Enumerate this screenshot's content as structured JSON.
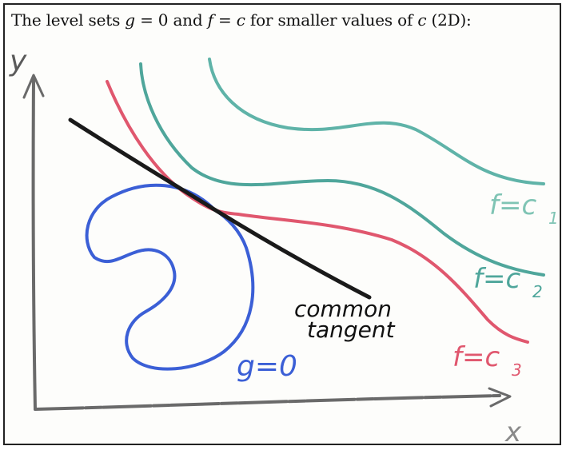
{
  "caption": {
    "pre": "The level sets ",
    "g": "g",
    "eq1": " = 0 and ",
    "f": "f",
    "eq2": " = ",
    "c": "c",
    "mid": " for smaller values of ",
    "c2": "c",
    "post": " (2D):"
  },
  "axes": {
    "y_label": "y",
    "x_label": "x"
  },
  "labels": {
    "f_c1": "f=c",
    "f_c1_sub": "1",
    "f_c2": "f=c",
    "f_c2_sub": "2",
    "f_c3": "f=c",
    "f_c3_sub": "3",
    "g_eq_0": "g=0",
    "tangent_line1": "common",
    "tangent_line2": "tangent"
  },
  "colors": {
    "c1": "#5fb3a8",
    "c2": "#4fa69b",
    "c3": "#e0576e",
    "g": "#3b5fd6",
    "tangent": "#1a1a1a",
    "axes": "#6a6a6a"
  }
}
